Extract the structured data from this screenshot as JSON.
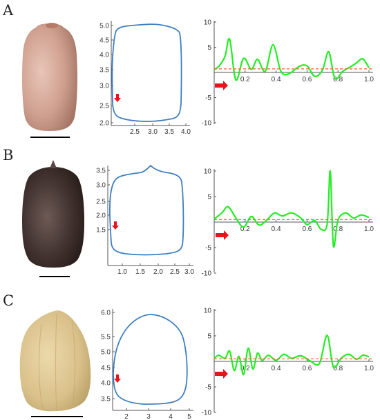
{
  "panels": [
    {
      "label": "A",
      "seed": {
        "color": "#cf9f8e",
        "color_dark": "#a57566",
        "highlight": "#e8c6b8",
        "shape": "oval-flat",
        "aspect": 0.78,
        "tip": "small"
      },
      "outline": {
        "xticks": [
          "2.5",
          "3.0",
          "3.5",
          "4.0"
        ],
        "yticks": [
          "2.0",
          "2.5",
          "3.0",
          "3.5",
          "4.0",
          "4.5",
          "5.0"
        ],
        "shape": "rounded-rect"
      },
      "signal": {
        "yticks": [
          "10",
          "5",
          "-5",
          "-10"
        ],
        "xticks": [
          "0.2",
          "0.4",
          "0.6",
          "0.8",
          "1.0"
        ],
        "mean": 0.7,
        "peaks": [
          [
            0.03,
            1.2
          ],
          [
            0.07,
            3.2
          ],
          [
            0.1,
            6.6
          ],
          [
            0.14,
            -1.5
          ],
          [
            0.19,
            2.8
          ],
          [
            0.24,
            0.6
          ],
          [
            0.28,
            2.6
          ],
          [
            0.33,
            0.2
          ],
          [
            0.38,
            5.5
          ],
          [
            0.43,
            0.3
          ],
          [
            0.48,
            -0.3
          ],
          [
            0.55,
            1.2
          ],
          [
            0.6,
            1.3
          ],
          [
            0.65,
            -0.8
          ],
          [
            0.7,
            0.5
          ],
          [
            0.74,
            4.1
          ],
          [
            0.78,
            -1.2
          ],
          [
            0.83,
            0.2
          ],
          [
            0.88,
            1.1
          ],
          [
            0.92,
            1.9
          ],
          [
            0.96,
            2.7
          ]
        ]
      }
    },
    {
      "label": "B",
      "seed": {
        "color": "#3f302d",
        "color_dark": "#221816",
        "highlight": "#6d5a55",
        "shape": "oval-flat",
        "aspect": 0.7,
        "tip": "pointed"
      },
      "outline": {
        "xticks": [
          "1.0",
          "1.5",
          "2.0",
          "2.5",
          "3.0"
        ],
        "yticks": [
          "1.5",
          "2.0",
          "2.5",
          "3.0",
          "3.5"
        ],
        "shape": "rounded-rect"
      },
      "signal": {
        "yticks": [
          "10",
          "5",
          "-5",
          "-10"
        ],
        "xticks": [
          "0.2",
          "0.4",
          "0.6",
          "0.8",
          "1.0"
        ],
        "mean": 0.5,
        "peaks": [
          [
            0.05,
            1.8
          ],
          [
            0.09,
            3.0
          ],
          [
            0.14,
            0.8
          ],
          [
            0.19,
            -1.0
          ],
          [
            0.24,
            1.1
          ],
          [
            0.29,
            -0.6
          ],
          [
            0.34,
            0.4
          ],
          [
            0.39,
            1.8
          ],
          [
            0.44,
            1.2
          ],
          [
            0.5,
            1.8
          ],
          [
            0.56,
            0.8
          ],
          [
            0.6,
            -0.5
          ],
          [
            0.65,
            0.3
          ],
          [
            0.69,
            -1.4
          ],
          [
            0.73,
            -0.4
          ],
          [
            0.75,
            10.0
          ],
          [
            0.77,
            -4.6
          ],
          [
            0.8,
            0.4
          ],
          [
            0.85,
            1.8
          ],
          [
            0.9,
            0.8
          ],
          [
            0.95,
            1.4
          ]
        ]
      }
    },
    {
      "label": "C",
      "seed": {
        "color": "#d9c08a",
        "color_dark": "#b8a066",
        "highlight": "#ecd9ab",
        "shape": "teardrop",
        "aspect": 0.82,
        "tip": "none"
      },
      "outline": {
        "xticks": [
          "2",
          "3",
          "4",
          "5"
        ],
        "yticks": [
          "3.5",
          "4.0",
          "4.5",
          "5.0",
          "5.5",
          "6.0"
        ],
        "shape": "teardrop"
      },
      "signal": {
        "yticks": [
          "10",
          "5",
          "-5",
          "-10"
        ],
        "xticks": [
          "0.2",
          "0.4",
          "0.6",
          "0.8",
          "1.0"
        ],
        "mean": 0.5,
        "peaks": [
          [
            0.03,
            1.2
          ],
          [
            0.07,
            0.6
          ],
          [
            0.1,
            2.0
          ],
          [
            0.13,
            -1.8
          ],
          [
            0.16,
            1.0
          ],
          [
            0.19,
            -2.6
          ],
          [
            0.22,
            2.6
          ],
          [
            0.25,
            -1.5
          ],
          [
            0.28,
            1.6
          ],
          [
            0.31,
            0.2
          ],
          [
            0.35,
            1.2
          ],
          [
            0.4,
            0.2
          ],
          [
            0.45,
            1.4
          ],
          [
            0.5,
            0.6
          ],
          [
            0.56,
            1.1
          ],
          [
            0.62,
            0.1
          ],
          [
            0.68,
            -0.4
          ],
          [
            0.73,
            5.1
          ],
          [
            0.77,
            -1.1
          ],
          [
            0.82,
            0.6
          ],
          [
            0.87,
            1.4
          ],
          [
            0.92,
            0.4
          ],
          [
            0.96,
            1.2
          ]
        ]
      }
    }
  ]
}
